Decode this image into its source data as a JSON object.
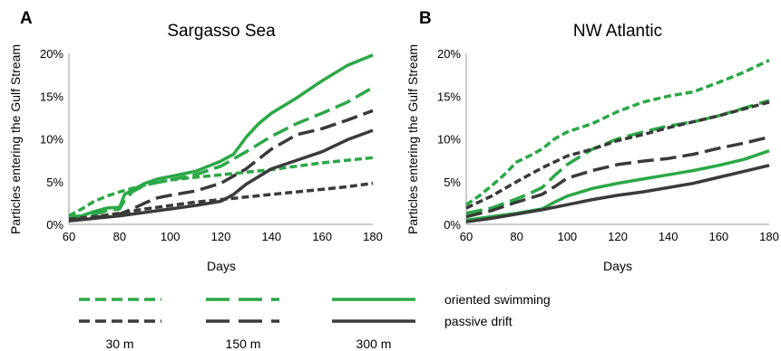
{
  "colors": {
    "oriented": "#2aa846",
    "passive": "#3a3a3a"
  },
  "chart_data": [
    {
      "panel": "A",
      "type": "line",
      "title": "Sargasso Sea",
      "xlabel": "Days",
      "ylabel": "Particles entering the Gulf Stream",
      "xlim": [
        60,
        180
      ],
      "ylim": [
        0,
        20
      ],
      "xticks": [
        60,
        80,
        100,
        120,
        140,
        160,
        180
      ],
      "yticks": [
        "0%",
        "5%",
        "10%",
        "15%",
        "20%"
      ],
      "series": [
        {
          "behavior": "oriented swimming",
          "depth": "30 m",
          "x": [
            60,
            65,
            70,
            75,
            80,
            85,
            90,
            95,
            100,
            110,
            120,
            130,
            140,
            150,
            160,
            170,
            180
          ],
          "values": [
            1.0,
            1.8,
            2.7,
            3.3,
            3.8,
            4.2,
            4.6,
            4.9,
            5.2,
            5.5,
            5.8,
            6.1,
            6.4,
            6.8,
            7.2,
            7.5,
            7.8
          ]
        },
        {
          "behavior": "oriented swimming",
          "depth": "150 m",
          "x": [
            60,
            65,
            70,
            75,
            80,
            82,
            85,
            90,
            95,
            100,
            110,
            120,
            130,
            140,
            150,
            160,
            170,
            180
          ],
          "values": [
            0.8,
            0.9,
            1.2,
            1.6,
            1.8,
            2.8,
            3.8,
            4.6,
            4.9,
            5.2,
            5.8,
            6.8,
            8.5,
            10.3,
            11.8,
            13.0,
            14.3,
            16.0
          ]
        },
        {
          "behavior": "oriented swimming",
          "depth": "300 m",
          "x": [
            60,
            65,
            70,
            75,
            80,
            82,
            85,
            90,
            95,
            100,
            110,
            120,
            125,
            130,
            135,
            140,
            150,
            160,
            170,
            180
          ],
          "values": [
            0.9,
            1.0,
            1.5,
            1.9,
            2.0,
            3.5,
            4.0,
            4.8,
            5.3,
            5.6,
            6.2,
            7.4,
            8.2,
            10.2,
            11.8,
            13.0,
            14.8,
            16.8,
            18.6,
            19.8
          ]
        },
        {
          "behavior": "passive drift",
          "depth": "30 m",
          "x": [
            60,
            70,
            80,
            90,
            100,
            110,
            120,
            130,
            140,
            150,
            160,
            170,
            180
          ],
          "values": [
            0.6,
            0.9,
            1.3,
            1.8,
            2.2,
            2.6,
            2.9,
            3.2,
            3.5,
            3.8,
            4.1,
            4.4,
            4.8
          ]
        },
        {
          "behavior": "passive drift",
          "depth": "150 m",
          "x": [
            60,
            70,
            80,
            85,
            90,
            95,
            100,
            110,
            120,
            130,
            140,
            150,
            160,
            170,
            180
          ],
          "values": [
            0.5,
            0.8,
            1.2,
            1.8,
            2.5,
            3.1,
            3.4,
            3.9,
            4.8,
            6.5,
            8.8,
            10.5,
            11.2,
            12.2,
            13.3
          ]
        },
        {
          "behavior": "passive drift",
          "depth": "300 m",
          "x": [
            60,
            70,
            80,
            90,
            100,
            110,
            120,
            125,
            130,
            140,
            150,
            160,
            170,
            180
          ],
          "values": [
            0.4,
            0.7,
            1.0,
            1.4,
            1.8,
            2.2,
            2.7,
            3.5,
            4.7,
            6.5,
            7.5,
            8.5,
            9.9,
            11.0
          ]
        }
      ]
    },
    {
      "panel": "B",
      "type": "line",
      "title": "NW Atlantic",
      "xlabel": "Days",
      "ylabel": "Particles entering the Gulf Stream",
      "xlim": [
        60,
        180
      ],
      "ylim": [
        0,
        20
      ],
      "xticks": [
        60,
        80,
        100,
        120,
        140,
        160,
        180
      ],
      "yticks": [
        "0%",
        "5%",
        "10%",
        "15%",
        "20%"
      ],
      "series": [
        {
          "behavior": "oriented swimming",
          "depth": "30 m",
          "x": [
            60,
            65,
            70,
            75,
            80,
            85,
            90,
            95,
            100,
            110,
            120,
            130,
            140,
            150,
            160,
            170,
            180
          ],
          "values": [
            2.3,
            3.3,
            4.5,
            5.8,
            7.3,
            8.0,
            8.8,
            10.0,
            10.8,
            11.8,
            13.2,
            14.3,
            15.0,
            15.5,
            16.6,
            17.8,
            19.2
          ]
        },
        {
          "behavior": "oriented swimming",
          "depth": "150 m",
          "x": [
            60,
            70,
            80,
            85,
            90,
            95,
            100,
            110,
            120,
            130,
            140,
            150,
            160,
            170,
            180
          ],
          "values": [
            1.3,
            1.9,
            3.0,
            3.6,
            4.3,
            5.7,
            7.0,
            8.8,
            10.0,
            10.8,
            11.5,
            12.0,
            12.7,
            13.6,
            14.5
          ]
        },
        {
          "behavior": "oriented swimming",
          "depth": "300 m",
          "x": [
            60,
            70,
            80,
            90,
            95,
            100,
            110,
            120,
            130,
            140,
            150,
            160,
            170,
            180
          ],
          "values": [
            0.5,
            0.9,
            1.3,
            1.8,
            2.6,
            3.3,
            4.2,
            4.8,
            5.3,
            5.8,
            6.3,
            6.9,
            7.6,
            8.6
          ]
        },
        {
          "behavior": "passive drift",
          "depth": "30 m",
          "x": [
            60,
            70,
            80,
            90,
            100,
            110,
            120,
            130,
            140,
            150,
            160,
            170,
            180
          ],
          "values": [
            1.9,
            3.3,
            5.0,
            6.6,
            8.0,
            8.8,
            9.8,
            10.5,
            11.3,
            12.0,
            12.7,
            13.5,
            14.3
          ]
        },
        {
          "behavior": "passive drift",
          "depth": "150 m",
          "x": [
            60,
            70,
            80,
            90,
            95,
            100,
            110,
            120,
            130,
            140,
            150,
            160,
            170,
            180
          ],
          "values": [
            0.9,
            1.6,
            2.6,
            3.5,
            4.4,
            5.4,
            6.3,
            7.0,
            7.4,
            7.7,
            8.2,
            8.9,
            9.5,
            10.2
          ]
        },
        {
          "behavior": "passive drift",
          "depth": "300 m",
          "x": [
            60,
            70,
            80,
            90,
            100,
            110,
            120,
            130,
            140,
            150,
            160,
            170,
            180
          ],
          "values": [
            0.3,
            0.7,
            1.2,
            1.7,
            2.3,
            2.9,
            3.4,
            3.8,
            4.3,
            4.8,
            5.5,
            6.2,
            6.9
          ]
        }
      ]
    }
  ],
  "legend": {
    "rows": [
      "oriented swimming",
      "passive drift"
    ],
    "columns": [
      "30 m",
      "150 m",
      "300 m"
    ]
  }
}
